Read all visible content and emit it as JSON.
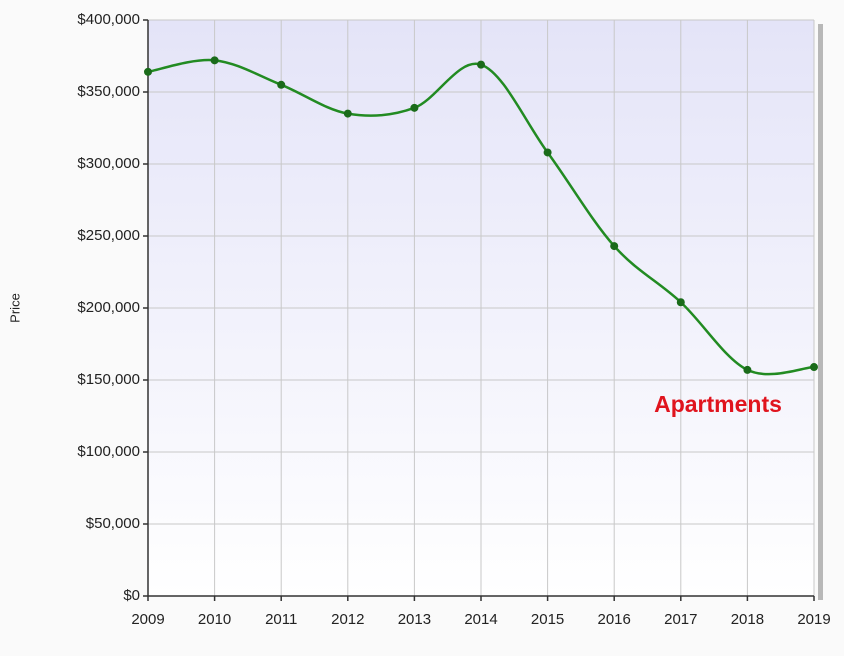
{
  "chart_data": {
    "type": "line",
    "y_label": "Price",
    "annotation": "Apartments",
    "annotation_color": "#e0141e",
    "x": [
      2009,
      2010,
      2011,
      2012,
      2013,
      2014,
      2015,
      2016,
      2017,
      2018,
      2019
    ],
    "series": [
      {
        "name": "Apartments",
        "color": "#228b22",
        "values": [
          364000,
          372000,
          355000,
          335000,
          339000,
          369000,
          308000,
          243000,
          204000,
          157000,
          159000
        ]
      }
    ],
    "xlim": [
      2009,
      2019
    ],
    "xticks": [
      2009,
      2010,
      2011,
      2012,
      2013,
      2014,
      2015,
      2016,
      2017,
      2018,
      2019
    ],
    "ylim": [
      0,
      400000
    ],
    "yticks": [
      {
        "value": 0,
        "label": "$0"
      },
      {
        "value": 50000,
        "label": "$50,000"
      },
      {
        "value": 100000,
        "label": "$100,000"
      },
      {
        "value": 150000,
        "label": "$150,000"
      },
      {
        "value": 200000,
        "label": "$200,000"
      },
      {
        "value": 250000,
        "label": "$250,000"
      },
      {
        "value": 300000,
        "label": "$300,000"
      },
      {
        "value": 350000,
        "label": "$350,000"
      },
      {
        "value": 400000,
        "label": "$400,000"
      }
    ],
    "grid": true
  }
}
